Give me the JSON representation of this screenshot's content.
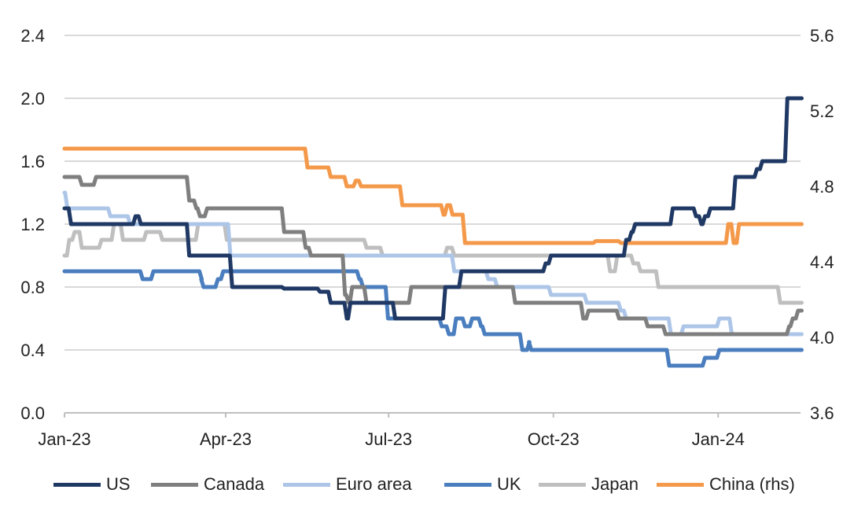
{
  "chart_data": {
    "type": "line",
    "title": "",
    "xlabel": "",
    "ylabel": "",
    "y2label": "",
    "x_ticks": [
      "Jan-23",
      "Apr-23",
      "Jul-23",
      "Oct-23",
      "Jan-24"
    ],
    "x_tick_dates": [
      "2023-01-01",
      "2023-04-01",
      "2023-07-01",
      "2023-10-01",
      "2024-01-01"
    ],
    "x_range": [
      "2023-01-01",
      "2024-02-16"
    ],
    "ylim": [
      0.0,
      2.4
    ],
    "y_ticks": [
      "0.0",
      "0.4",
      "0.8",
      "1.2",
      "1.6",
      "2.0",
      "2.4"
    ],
    "y2lim": [
      3.6,
      5.6
    ],
    "y2_ticks": [
      "3.6",
      "4.0",
      "4.4",
      "4.8",
      "5.2",
      "5.6"
    ],
    "grid": true,
    "legend_position": "bottom",
    "series": [
      {
        "name": "US",
        "axis": "left",
        "color": "#1f3864",
        "points": [
          [
            "2023-01-01",
            1.3
          ],
          [
            "2023-01-04",
            1.2
          ],
          [
            "2023-02-09",
            1.25
          ],
          [
            "2023-02-12",
            1.2
          ],
          [
            "2023-03-11",
            1.0
          ],
          [
            "2023-04-04",
            0.8
          ],
          [
            "2023-05-03",
            0.79
          ],
          [
            "2023-05-23",
            0.77
          ],
          [
            "2023-05-29",
            0.7
          ],
          [
            "2023-06-07",
            0.6
          ],
          [
            "2023-06-09",
            0.7
          ],
          [
            "2023-07-04",
            0.6
          ],
          [
            "2023-08-01",
            0.8
          ],
          [
            "2023-08-10",
            0.9
          ],
          [
            "2023-09-26",
            0.95
          ],
          [
            "2023-09-29",
            1.0
          ],
          [
            "2023-11-10",
            1.1
          ],
          [
            "2023-11-13",
            1.15
          ],
          [
            "2023-11-15",
            1.2
          ],
          [
            "2023-12-06",
            1.3
          ],
          [
            "2023-12-19",
            1.25
          ],
          [
            "2023-12-22",
            1.2
          ],
          [
            "2023-12-24",
            1.25
          ],
          [
            "2023-12-27",
            1.3
          ],
          [
            "2024-01-10",
            1.5
          ],
          [
            "2024-01-22",
            1.55
          ],
          [
            "2024-01-25",
            1.6
          ],
          [
            "2024-02-08",
            2.0
          ],
          [
            "2024-02-16",
            2.0
          ]
        ]
      },
      {
        "name": "Canada",
        "axis": "left",
        "color": "#7f7f7f",
        "points": [
          [
            "2023-01-01",
            1.5
          ],
          [
            "2023-01-10",
            1.45
          ],
          [
            "2023-01-18",
            1.5
          ],
          [
            "2023-03-11",
            1.35
          ],
          [
            "2023-03-15",
            1.3
          ],
          [
            "2023-03-17",
            1.25
          ],
          [
            "2023-03-21",
            1.3
          ],
          [
            "2023-05-03",
            1.15
          ],
          [
            "2023-05-15",
            1.05
          ],
          [
            "2023-05-18",
            1.0
          ],
          [
            "2023-06-06",
            0.75
          ],
          [
            "2023-06-08",
            0.7
          ],
          [
            "2023-06-10",
            0.8
          ],
          [
            "2023-06-18",
            0.7
          ],
          [
            "2023-07-13",
            0.8
          ],
          [
            "2023-09-09",
            0.7
          ],
          [
            "2023-10-17",
            0.6
          ],
          [
            "2023-10-20",
            0.65
          ],
          [
            "2023-11-06",
            0.6
          ],
          [
            "2023-11-22",
            0.55
          ],
          [
            "2023-12-02",
            0.5
          ],
          [
            "2024-02-09",
            0.55
          ],
          [
            "2024-02-11",
            0.6
          ],
          [
            "2024-02-14",
            0.65
          ],
          [
            "2024-02-16",
            0.65
          ]
        ]
      },
      {
        "name": "Euro area",
        "axis": "left",
        "color": "#adc6e8",
        "points": [
          [
            "2023-01-01",
            1.4
          ],
          [
            "2023-01-02",
            1.3
          ],
          [
            "2023-01-26",
            1.25
          ],
          [
            "2023-02-06",
            1.2
          ],
          [
            "2023-04-03",
            1.0
          ],
          [
            "2023-08-06",
            0.9
          ],
          [
            "2023-08-25",
            0.85
          ],
          [
            "2023-08-30",
            0.8
          ],
          [
            "2023-09-29",
            0.75
          ],
          [
            "2023-10-19",
            0.7
          ],
          [
            "2023-11-07",
            0.65
          ],
          [
            "2023-11-10",
            0.6
          ],
          [
            "2023-12-05",
            0.5
          ],
          [
            "2023-12-12",
            0.55
          ],
          [
            "2024-01-01",
            0.6
          ],
          [
            "2024-01-08",
            0.5
          ],
          [
            "2024-02-16",
            0.5
          ]
        ]
      },
      {
        "name": "UK",
        "axis": "left",
        "color": "#4a7ebf",
        "points": [
          [
            "2023-01-01",
            0.9
          ],
          [
            "2023-02-13",
            0.85
          ],
          [
            "2023-02-19",
            0.9
          ],
          [
            "2023-03-18",
            0.85
          ],
          [
            "2023-03-19",
            0.8
          ],
          [
            "2023-03-27",
            0.85
          ],
          [
            "2023-03-30",
            0.9
          ],
          [
            "2023-06-14",
            0.85
          ],
          [
            "2023-06-16",
            0.8
          ],
          [
            "2023-06-30",
            0.6
          ],
          [
            "2023-07-30",
            0.55
          ],
          [
            "2023-08-03",
            0.5
          ],
          [
            "2023-08-07",
            0.6
          ],
          [
            "2023-08-12",
            0.55
          ],
          [
            "2023-08-16",
            0.6
          ],
          [
            "2023-08-21",
            0.55
          ],
          [
            "2023-08-23",
            0.5
          ],
          [
            "2023-09-13",
            0.4
          ],
          [
            "2023-09-17",
            0.45
          ],
          [
            "2023-09-18",
            0.4
          ],
          [
            "2023-12-04",
            0.3
          ],
          [
            "2023-12-24",
            0.35
          ],
          [
            "2024-01-01",
            0.4
          ],
          [
            "2024-02-16",
            0.4
          ]
        ]
      },
      {
        "name": "Japan",
        "axis": "left",
        "color": "#bfbfbf",
        "points": [
          [
            "2023-01-01",
            1.0
          ],
          [
            "2023-01-03",
            1.1
          ],
          [
            "2023-01-06",
            1.15
          ],
          [
            "2023-01-10",
            1.05
          ],
          [
            "2023-01-21",
            1.1
          ],
          [
            "2023-01-28",
            1.2
          ],
          [
            "2023-02-02",
            1.1
          ],
          [
            "2023-02-15",
            1.15
          ],
          [
            "2023-02-24",
            1.1
          ],
          [
            "2023-03-16",
            1.2
          ],
          [
            "2023-04-01",
            1.1
          ],
          [
            "2023-06-18",
            1.05
          ],
          [
            "2023-06-27",
            1.0
          ],
          [
            "2023-08-02",
            1.05
          ],
          [
            "2023-08-06",
            1.0
          ],
          [
            "2023-11-01",
            0.9
          ],
          [
            "2023-11-05",
            1.0
          ],
          [
            "2023-11-14",
            0.95
          ],
          [
            "2023-11-18",
            0.9
          ],
          [
            "2023-11-28",
            0.8
          ],
          [
            "2024-02-04",
            0.7
          ],
          [
            "2024-02-16",
            0.7
          ]
        ]
      },
      {
        "name": "China (rhs)",
        "axis": "right",
        "color": "#f4994a",
        "points": [
          [
            "2023-01-01",
            5.0
          ],
          [
            "2023-05-16",
            4.9
          ],
          [
            "2023-05-29",
            4.85
          ],
          [
            "2023-06-07",
            4.8
          ],
          [
            "2023-06-12",
            4.83
          ],
          [
            "2023-06-15",
            4.8
          ],
          [
            "2023-07-08",
            4.7
          ],
          [
            "2023-07-31",
            4.65
          ],
          [
            "2023-08-02",
            4.7
          ],
          [
            "2023-08-05",
            4.65
          ],
          [
            "2023-08-12",
            4.5
          ],
          [
            "2023-10-24",
            4.51
          ],
          [
            "2023-11-07",
            4.5
          ],
          [
            "2024-01-06",
            4.6
          ],
          [
            "2024-01-09",
            4.5
          ],
          [
            "2024-01-12",
            4.6
          ],
          [
            "2024-02-16",
            4.6
          ]
        ]
      }
    ]
  }
}
